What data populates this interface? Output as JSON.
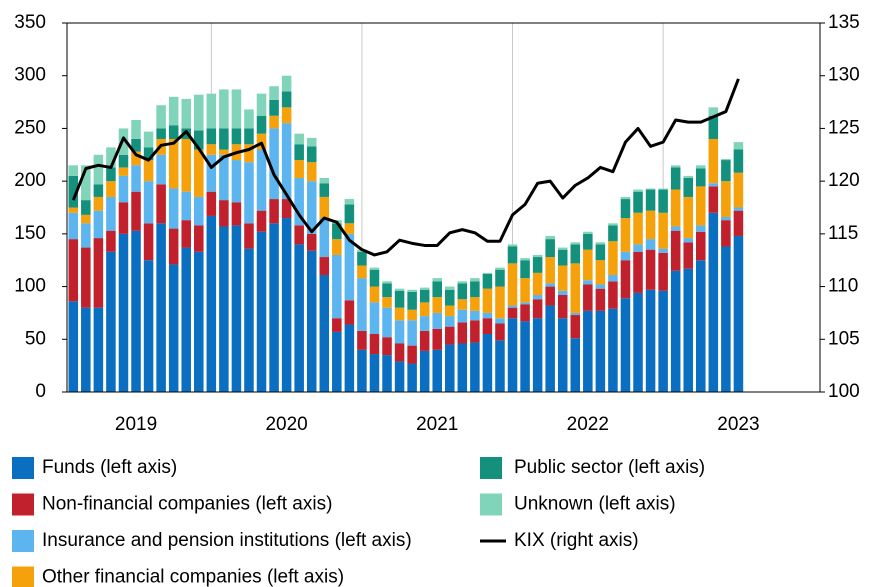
{
  "chart_data": {
    "type": "bar",
    "stacked": true,
    "categories": [
      null,
      null,
      null,
      null,
      null,
      "2019",
      null,
      null,
      null,
      null,
      null,
      null,
      null,
      null,
      null,
      null,
      null,
      "2020",
      null,
      null,
      null,
      null,
      null,
      null,
      null,
      null,
      null,
      null,
      null,
      "2021",
      null,
      null,
      null,
      null,
      null,
      null,
      null,
      null,
      null,
      null,
      null,
      "2022",
      null,
      null,
      null,
      null,
      null,
      null,
      null,
      null,
      null,
      null,
      null,
      "2023"
    ],
    "series": [
      {
        "name": "Funds (left axis)",
        "color": "#0b6fc1",
        "values": [
          86,
          80,
          80,
          133,
          150,
          153,
          125,
          160,
          121,
          137,
          133,
          167,
          157,
          158,
          136,
          152,
          160,
          165,
          140,
          134,
          111,
          57,
          64,
          40,
          36,
          35,
          29,
          27,
          39,
          40,
          45,
          46,
          47,
          55,
          49,
          70,
          67,
          70,
          82,
          70,
          51,
          77,
          77,
          79,
          89,
          94,
          97,
          96,
          115,
          117,
          125,
          170,
          138,
          148
        ]
      },
      {
        "name": "Non-financial companies (left axis)",
        "color": "#c0212d",
        "values": [
          59,
          57,
          66,
          20,
          30,
          37,
          35,
          37,
          34,
          26,
          25,
          23,
          25,
          22,
          24,
          20,
          23,
          18,
          18,
          16,
          17,
          13,
          23,
          18,
          19,
          17,
          17,
          17,
          19,
          20,
          17,
          20,
          21,
          15,
          16,
          10,
          16,
          18,
          18,
          22,
          22,
          25,
          21,
          26,
          36,
          39,
          38,
          36,
          38,
          25,
          27,
          25,
          25,
          24
        ]
      },
      {
        "name": "Insurance and pension institutions (left axis)",
        "color": "#5cb5ef",
        "values": [
          25,
          23,
          26,
          32,
          25,
          25,
          40,
          28,
          38,
          27,
          27,
          35,
          43,
          40,
          58,
          58,
          67,
          72,
          45,
          50,
          37,
          60,
          63,
          50,
          30,
          28,
          22,
          24,
          14,
          15,
          10,
          12,
          9,
          5,
          5,
          2,
          2,
          4,
          3,
          4,
          2,
          4,
          4,
          6,
          8,
          7,
          10,
          4,
          4,
          4,
          6,
          3,
          3,
          3
        ]
      },
      {
        "name": "Other financial companies (left axis)",
        "color": "#f5a10b",
        "values": [
          5,
          8,
          13,
          15,
          8,
          13,
          20,
          15,
          47,
          50,
          45,
          10,
          5,
          15,
          17,
          15,
          12,
          15,
          17,
          18,
          20,
          15,
          10,
          12,
          15,
          10,
          12,
          10,
          13,
          15,
          10,
          10,
          13,
          23,
          30,
          40,
          23,
          21,
          25,
          24,
          47,
          29,
          23,
          32,
          32,
          30,
          27,
          34,
          35,
          39,
          37,
          42,
          34,
          33
        ]
      },
      {
        "name": "Public sector (left axis)",
        "color": "#14917c",
        "values": [
          30,
          14,
          12,
          13,
          12,
          12,
          12,
          10,
          13,
          10,
          18,
          15,
          20,
          15,
          15,
          17,
          15,
          15,
          15,
          15,
          13,
          15,
          18,
          13,
          16,
          13,
          16,
          17,
          12,
          15,
          15,
          15,
          15,
          14,
          16,
          16,
          17,
          15,
          17,
          15,
          18,
          15,
          15,
          15,
          18,
          20,
          20,
          22,
          21,
          18,
          17,
          22,
          20,
          22
        ]
      },
      {
        "name": "Unknown (left axis)",
        "color": "#80d4b9",
        "values": [
          10,
          33,
          28,
          19,
          25,
          18,
          15,
          22,
          27,
          28,
          34,
          33,
          37,
          37,
          18,
          21,
          13,
          15,
          10,
          8,
          5,
          3,
          5,
          2,
          2,
          2,
          2,
          2,
          2,
          3,
          3,
          2,
          3,
          1,
          2,
          2,
          2,
          2,
          3,
          2,
          2,
          2,
          2,
          2,
          2,
          2,
          1,
          1,
          2,
          2,
          3,
          8,
          1,
          7
        ]
      },
      {
        "name": "KIX (right axis)",
        "type": "line",
        "axis": "y2",
        "color": "#000000",
        "values": [
          118.2,
          121.2,
          121.5,
          121.3,
          124.1,
          122.5,
          122,
          123.4,
          123.6,
          124.7,
          123.1,
          121.3,
          122.3,
          122.7,
          123,
          123.6,
          120.6,
          118.7,
          116.8,
          115.2,
          116.5,
          116.1,
          114.4,
          113.5,
          113,
          113.3,
          114.4,
          114.1,
          113.9,
          113.9,
          115.1,
          115.4,
          115.1,
          114.3,
          114.3,
          116.8,
          117.8,
          119.8,
          120,
          118.4,
          119.6,
          120.3,
          121.3,
          120.9,
          123.7,
          125,
          123.3,
          123.7,
          125.8,
          125.6,
          125.6,
          126.1,
          126.6,
          129.7
        ]
      }
    ],
    "ylim": [
      0,
      350
    ],
    "yticks": [
      0,
      50,
      100,
      150,
      200,
      250,
      300,
      350
    ],
    "y2lim": [
      100,
      135
    ],
    "y2ticks": [
      100,
      105,
      110,
      115,
      120,
      125,
      130,
      135
    ],
    "grid": "x",
    "legend": "bottom"
  }
}
